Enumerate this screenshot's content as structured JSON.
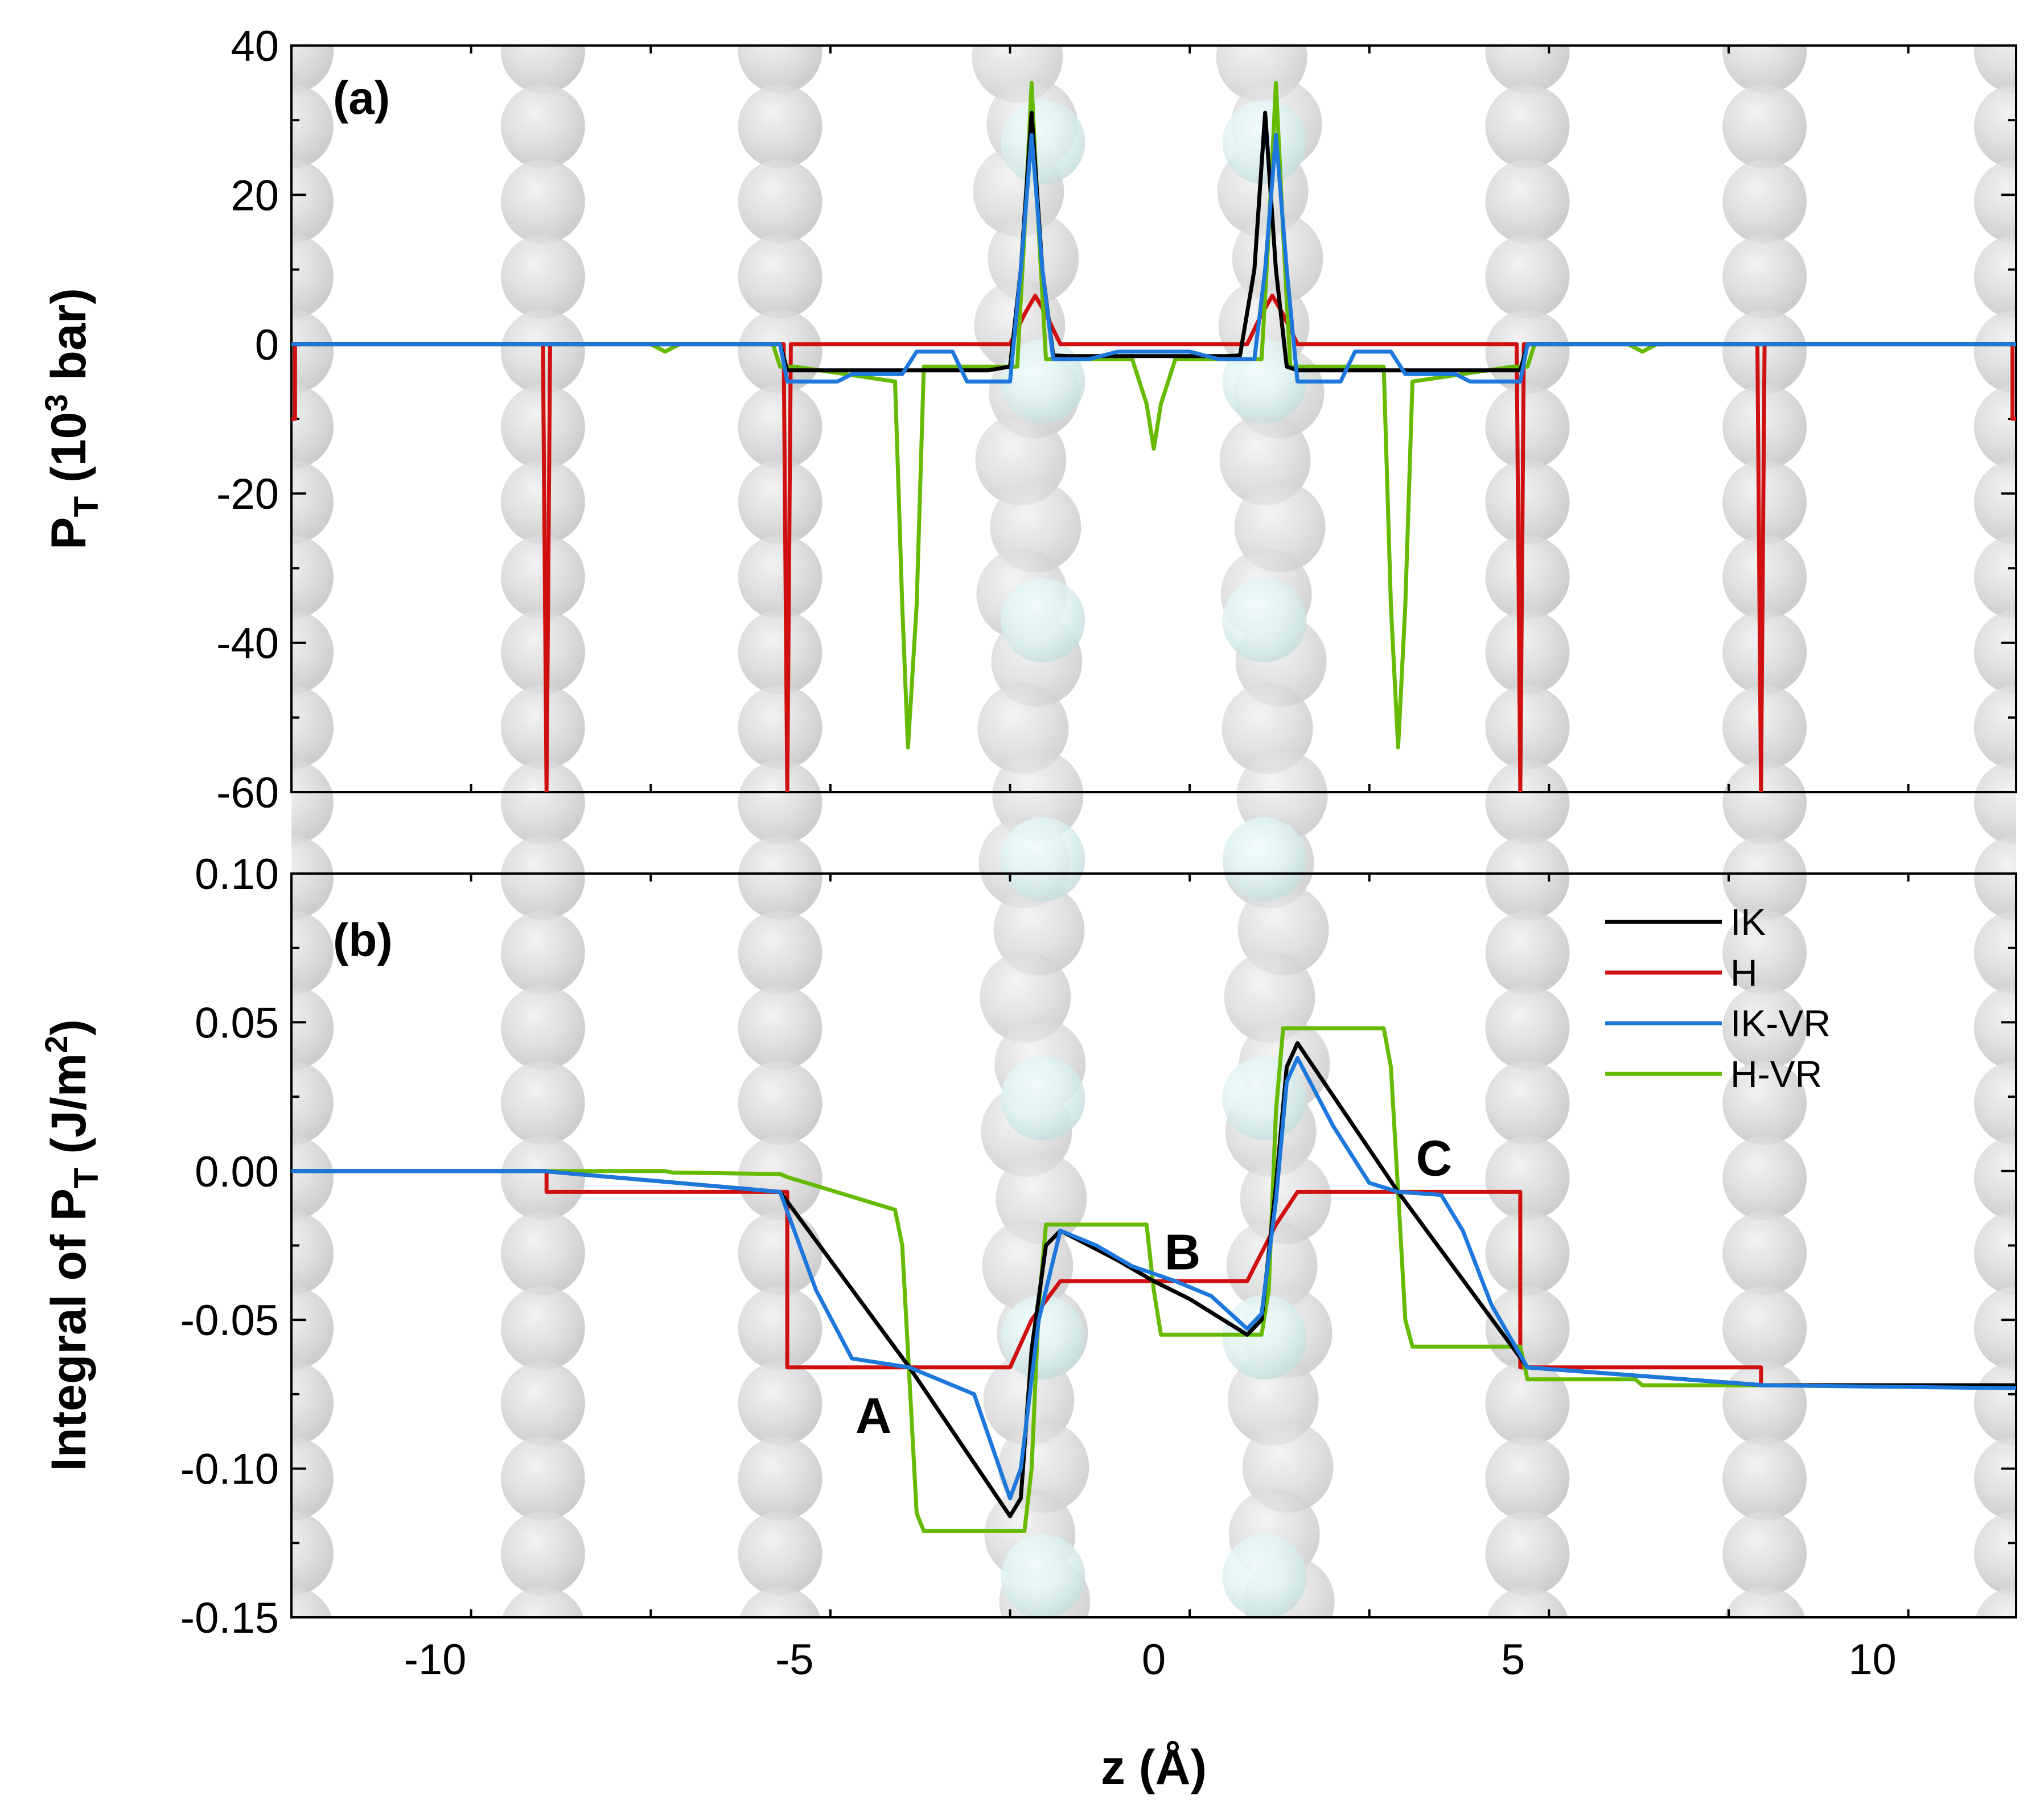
{
  "chart_data": [
    {
      "panel": "(a)",
      "type": "line",
      "xlabel": "z (Å)",
      "ylabel_main": "P",
      "ylabel_sub": "T",
      "ylabel_rest_a": " (10",
      "ylabel_sup": "3",
      "ylabel_rest_b": " bar)",
      "xlim": [
        -12,
        12
      ],
      "ylim": [
        -60,
        40
      ],
      "yticks": [
        -60,
        -40,
        -20,
        0,
        20,
        40
      ],
      "ytick_labels": [
        "-60",
        "-40",
        "-20",
        "0",
        "20",
        "40"
      ],
      "colors": {
        "IK": "#000000",
        "H": "#d01010",
        "IK-VR": "#1e78dc",
        "H-VR": "#66bb00"
      },
      "series": [
        {
          "name": "IK",
          "x": [
            -12,
            -5.2,
            -5.1,
            -2.3,
            -2.0,
            -1.85,
            -1.7,
            -1.55,
            -1.4,
            -1.2,
            -1.0,
            0,
            1.0,
            1.2,
            1.4,
            1.55,
            1.7,
            1.85,
            2.0,
            2.3,
            5.1,
            5.2,
            12
          ],
          "y": [
            0,
            0,
            -3.5,
            -3.5,
            -3.0,
            10,
            31,
            10,
            -1.5,
            -1.6,
            -1.6,
            -1.6,
            -1.6,
            -1.5,
            10,
            31,
            10,
            -3.0,
            -3.5,
            -3.5,
            -3.5,
            0,
            0
          ]
        },
        {
          "name": "H",
          "x": [
            -12,
            -11.95,
            -11.95,
            -8.5,
            -8.45,
            -8.4,
            -5.15,
            -5.1,
            -5.05,
            -2.0,
            -1.8,
            -1.65,
            -1.5,
            -1.3,
            1.3,
            1.5,
            1.65,
            1.8,
            2.0,
            5.05,
            5.1,
            5.15,
            8.4,
            8.45,
            8.5,
            11.95,
            11.95,
            12
          ],
          "y": [
            -10,
            -10,
            0,
            0,
            -60,
            0,
            0,
            -60,
            0,
            0,
            4,
            6.5,
            4,
            0,
            0,
            4,
            6.5,
            4,
            0,
            0,
            -60,
            0,
            0,
            -60,
            0,
            0,
            -10,
            -10
          ]
        },
        {
          "name": "IK-VR",
          "x": [
            -12,
            -5.2,
            -5.1,
            -4.4,
            -4.2,
            -3.5,
            -3.3,
            -2.8,
            -2.6,
            -2.0,
            -1.85,
            -1.7,
            -1.55,
            -1.4,
            -1.2,
            -0.9,
            -0.5,
            -0.3,
            0.3,
            0.5,
            0.9,
            1.2,
            1.4,
            1.55,
            1.7,
            1.85,
            2.0,
            2.6,
            2.8,
            3.3,
            3.5,
            4.2,
            4.4,
            5.1,
            5.2,
            12
          ],
          "y": [
            0,
            0,
            -5,
            -5,
            -4,
            -4,
            -1,
            -1,
            -5,
            -5,
            10,
            28,
            10,
            -2,
            -2,
            -2,
            -1,
            -1,
            -1,
            -1,
            -2,
            -2,
            -2,
            10,
            28,
            10,
            -5,
            -5,
            -1,
            -1,
            -4,
            -4,
            -5,
            -5,
            0,
            0
          ]
        },
        {
          "name": "H-VR",
          "x": [
            -12,
            -7.0,
            -6.8,
            -6.6,
            -5.3,
            -5.2,
            -5.0,
            -3.6,
            -3.5,
            -3.42,
            -3.3,
            -3.2,
            -1.9,
            -1.8,
            -1.7,
            -1.6,
            -1.5,
            -0.3,
            -0.1,
            0,
            0.1,
            0.3,
            1.5,
            1.6,
            1.7,
            1.8,
            1.9,
            3.2,
            3.3,
            3.4,
            3.5,
            3.6,
            5.0,
            5.2,
            5.3,
            6.6,
            6.8,
            7.0,
            12
          ],
          "y": [
            0,
            0,
            -1,
            0,
            0,
            -3,
            -3,
            -5,
            -35,
            -54,
            -35,
            -3,
            -3,
            15,
            35,
            15,
            -2,
            -2,
            -8,
            -14,
            -8,
            -2,
            -2,
            15,
            35,
            15,
            -3,
            -3,
            -35,
            -54,
            -35,
            -5,
            -3,
            -3,
            0,
            0,
            -1,
            0,
            0
          ]
        }
      ]
    },
    {
      "panel": "(b)",
      "type": "line",
      "xlabel": "z (Å)",
      "ylabel_main": "Integral of P",
      "ylabel_sub": "T",
      "ylabel_rest_a": " (J/m",
      "ylabel_sup": "2",
      "ylabel_rest_b": ")",
      "xlim": [
        -12,
        12
      ],
      "ylim": [
        -0.15,
        0.1
      ],
      "yticks": [
        -0.15,
        -0.1,
        -0.05,
        0.0,
        0.05,
        0.1
      ],
      "ytick_labels": [
        "-0.15",
        "-0.10",
        "-0.05",
        "0.00",
        "0.05",
        "0.10"
      ],
      "xticks": [
        -10,
        -5,
        0,
        5,
        10
      ],
      "xtick_labels": [
        "-10",
        "-5",
        "0",
        "5",
        "10"
      ],
      "annotations": [
        {
          "text": "A",
          "x": -3.9,
          "y": -0.088
        },
        {
          "text": "B",
          "x": 0.4,
          "y": -0.033
        },
        {
          "text": "C",
          "x": 3.9,
          "y": -0.0015
        }
      ],
      "legend_position": "top-right",
      "series": [
        {
          "name": "IK",
          "x": [
            -12,
            -8.5,
            -5.2,
            -3.4,
            -2.0,
            -1.85,
            -1.7,
            -1.5,
            -1.3,
            -0.5,
            0,
            0.5,
            1.3,
            1.5,
            1.7,
            1.85,
            2.0,
            3.4,
            5.2,
            8.5,
            12
          ],
          "y": [
            0,
            0,
            -0.007,
            -0.066,
            -0.116,
            -0.11,
            -0.06,
            -0.025,
            -0.02,
            -0.03,
            -0.037,
            -0.043,
            -0.055,
            -0.05,
            -0.005,
            0.035,
            0.043,
            -0.007,
            -0.066,
            -0.072,
            -0.072
          ]
        },
        {
          "name": "H",
          "x": [
            -12,
            -8.45,
            -8.45,
            -5.1,
            -5.1,
            -2.0,
            -1.7,
            -1.3,
            1.3,
            1.7,
            2.0,
            5.1,
            5.1,
            8.45,
            8.45,
            12
          ],
          "y": [
            0,
            0,
            -0.007,
            -0.007,
            -0.066,
            -0.066,
            -0.05,
            -0.037,
            -0.037,
            -0.018,
            -0.007,
            -0.007,
            -0.066,
            -0.066,
            -0.072,
            -0.072
          ]
        },
        {
          "name": "IK-VR",
          "x": [
            -12,
            -8.5,
            -5.2,
            -4.7,
            -4.2,
            -3.4,
            -2.5,
            -2.0,
            -1.85,
            -1.6,
            -1.3,
            -0.8,
            -0.3,
            0.3,
            0.8,
            1.3,
            1.5,
            1.7,
            1.85,
            2.0,
            2.5,
            3.0,
            3.4,
            4.0,
            4.3,
            4.7,
            5.2,
            8.5,
            12
          ],
          "y": [
            0,
            0,
            -0.007,
            -0.04,
            -0.063,
            -0.066,
            -0.075,
            -0.11,
            -0.1,
            -0.05,
            -0.02,
            -0.025,
            -0.032,
            -0.037,
            -0.042,
            -0.053,
            -0.048,
            -0.01,
            0.03,
            0.038,
            0.015,
            -0.004,
            -0.007,
            -0.008,
            -0.02,
            -0.045,
            -0.066,
            -0.072,
            -0.073
          ]
        },
        {
          "name": "H-VR",
          "x": [
            -12,
            -6.8,
            -6.7,
            -5.2,
            -5.1,
            -3.6,
            -3.5,
            -3.4,
            -3.3,
            -3.2,
            -1.8,
            -1.7,
            -1.6,
            -1.5,
            -0.1,
            0,
            0.1,
            1.5,
            1.6,
            1.7,
            1.8,
            3.2,
            3.3,
            3.4,
            3.5,
            3.6,
            5.1,
            5.2,
            6.7,
            6.8,
            12
          ],
          "y": [
            0,
            0,
            -0.0005,
            -0.001,
            -0.002,
            -0.013,
            -0.025,
            -0.07,
            -0.115,
            -0.121,
            -0.121,
            -0.1,
            -0.045,
            -0.018,
            -0.018,
            -0.04,
            -0.055,
            -0.055,
            -0.04,
            0.02,
            0.048,
            0.048,
            0.035,
            -0.007,
            -0.05,
            -0.059,
            -0.059,
            -0.07,
            -0.07,
            -0.072,
            -0.072
          ]
        }
      ]
    }
  ]
}
